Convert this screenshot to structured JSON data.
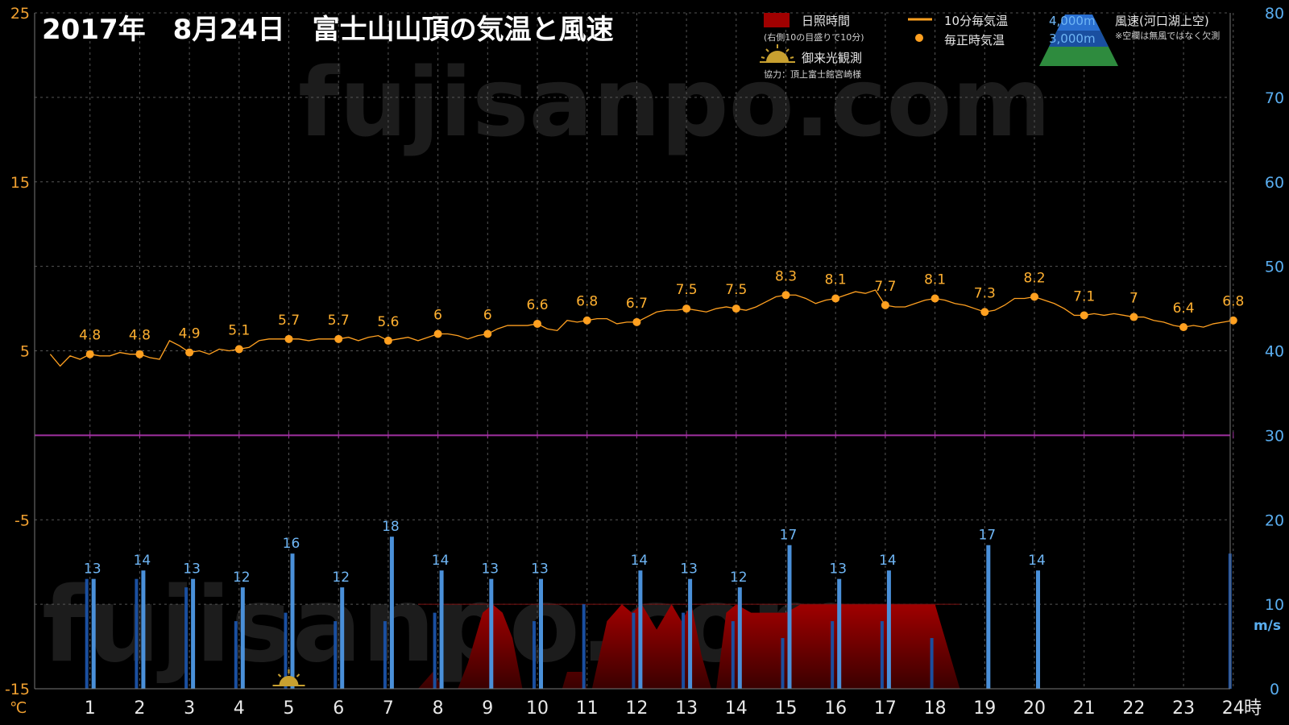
{
  "title": "2017年　8月24日　富士山山頂の気温と風速",
  "watermark": "fujisanpo.com",
  "colors": {
    "temperature": "#ffa020",
    "wind_4000": "#4a90d9",
    "wind_3000": "#1a4fa0",
    "sunshine": "#a00000",
    "zero_line": "#a030a0",
    "grid": "#555555",
    "left_axis": "#f0a030",
    "right_axis": "#5aaef0"
  },
  "legend": {
    "sunshine_label": "日照時間",
    "sunshine_note": "(右側10の目盛りで10分)",
    "temp10_label": "10分毎気温",
    "temp_hourly_label": "毎正時気温",
    "sunrise_label": "御来光観測",
    "credit": "協力：頂上富士館宮崎様",
    "alt_4000": "4,000m",
    "alt_3000": "3,000m",
    "wind_title": "風速(河口湖上空)",
    "wind_note": "※空欄は無風ではなく欠測"
  },
  "chart_data": {
    "type": "line",
    "x_unit_label": "時",
    "left_axis_unit": "℃",
    "right_axis_unit": "m/s",
    "hours": [
      1,
      2,
      3,
      4,
      5,
      6,
      7,
      8,
      9,
      10,
      11,
      12,
      13,
      14,
      15,
      16,
      17,
      18,
      19,
      20,
      21,
      22,
      23,
      24
    ],
    "left_ticks": [
      "-15",
      "-5",
      "5",
      "15",
      "25"
    ],
    "right_ticks": [
      "0",
      "10",
      "20",
      "30",
      "40",
      "50",
      "60",
      "70",
      "80"
    ],
    "temp_ylim": [
      -15,
      25
    ],
    "wind_ylim": [
      0,
      80
    ],
    "hourly_temperature": [
      4.8,
      4.8,
      4.9,
      5.1,
      5.7,
      5.7,
      5.6,
      6,
      6,
      6.6,
      6.8,
      6.7,
      7.5,
      7.5,
      8.3,
      8.1,
      7.7,
      8.1,
      7.3,
      8.2,
      7.1,
      7,
      6.4,
      6.8
    ],
    "hourly_temperature_labels": [
      "4.8",
      "4.8",
      "4.9",
      "5.1",
      "5.7",
      "5.7",
      "5.6",
      "6",
      "6",
      "6.6",
      "6.8",
      "6.7",
      "7.5",
      "7.5",
      "8.3",
      "8.1",
      "7.7",
      "8.1",
      "7.3",
      "8.2",
      "7.1",
      "7",
      "6.4",
      "6.8"
    ],
    "ten_min_temperature": [
      {
        "x": 0.2,
        "y": 4.8
      },
      {
        "x": 0.4,
        "y": 4.1
      },
      {
        "x": 0.6,
        "y": 4.7
      },
      {
        "x": 0.8,
        "y": 4.5
      },
      {
        "x": 1.0,
        "y": 4.8
      },
      {
        "x": 1.2,
        "y": 4.7
      },
      {
        "x": 1.4,
        "y": 4.7
      },
      {
        "x": 1.6,
        "y": 4.9
      },
      {
        "x": 1.8,
        "y": 4.8
      },
      {
        "x": 2.0,
        "y": 4.8
      },
      {
        "x": 2.2,
        "y": 4.6
      },
      {
        "x": 2.4,
        "y": 4.5
      },
      {
        "x": 2.6,
        "y": 5.6
      },
      {
        "x": 2.8,
        "y": 5.3
      },
      {
        "x": 3.0,
        "y": 4.9
      },
      {
        "x": 3.2,
        "y": 5.0
      },
      {
        "x": 3.4,
        "y": 4.8
      },
      {
        "x": 3.6,
        "y": 5.1
      },
      {
        "x": 3.8,
        "y": 5.0
      },
      {
        "x": 4.0,
        "y": 5.1
      },
      {
        "x": 4.2,
        "y": 5.2
      },
      {
        "x": 4.4,
        "y": 5.6
      },
      {
        "x": 4.6,
        "y": 5.7
      },
      {
        "x": 4.8,
        "y": 5.7
      },
      {
        "x": 5.0,
        "y": 5.7
      },
      {
        "x": 5.2,
        "y": 5.7
      },
      {
        "x": 5.4,
        "y": 5.6
      },
      {
        "x": 5.6,
        "y": 5.7
      },
      {
        "x": 5.8,
        "y": 5.7
      },
      {
        "x": 6.0,
        "y": 5.7
      },
      {
        "x": 6.2,
        "y": 5.8
      },
      {
        "x": 6.4,
        "y": 5.6
      },
      {
        "x": 6.6,
        "y": 5.8
      },
      {
        "x": 6.8,
        "y": 5.9
      },
      {
        "x": 7.0,
        "y": 5.6
      },
      {
        "x": 7.2,
        "y": 5.7
      },
      {
        "x": 7.4,
        "y": 5.8
      },
      {
        "x": 7.6,
        "y": 5.6
      },
      {
        "x": 7.8,
        "y": 5.8
      },
      {
        "x": 8.0,
        "y": 6.0
      },
      {
        "x": 8.2,
        "y": 6.0
      },
      {
        "x": 8.4,
        "y": 5.9
      },
      {
        "x": 8.6,
        "y": 5.7
      },
      {
        "x": 8.8,
        "y": 5.9
      },
      {
        "x": 9.0,
        "y": 6.0
      },
      {
        "x": 9.2,
        "y": 6.3
      },
      {
        "x": 9.4,
        "y": 6.5
      },
      {
        "x": 9.6,
        "y": 6.5
      },
      {
        "x": 9.8,
        "y": 6.5
      },
      {
        "x": 10.0,
        "y": 6.6
      },
      {
        "x": 10.2,
        "y": 6.3
      },
      {
        "x": 10.4,
        "y": 6.2
      },
      {
        "x": 10.6,
        "y": 6.8
      },
      {
        "x": 10.8,
        "y": 6.7
      },
      {
        "x": 11.0,
        "y": 6.8
      },
      {
        "x": 11.2,
        "y": 6.9
      },
      {
        "x": 11.4,
        "y": 6.9
      },
      {
        "x": 11.6,
        "y": 6.6
      },
      {
        "x": 11.8,
        "y": 6.7
      },
      {
        "x": 12.0,
        "y": 6.7
      },
      {
        "x": 12.2,
        "y": 7.0
      },
      {
        "x": 12.4,
        "y": 7.3
      },
      {
        "x": 12.6,
        "y": 7.4
      },
      {
        "x": 12.8,
        "y": 7.4
      },
      {
        "x": 13.0,
        "y": 7.5
      },
      {
        "x": 13.2,
        "y": 7.4
      },
      {
        "x": 13.4,
        "y": 7.3
      },
      {
        "x": 13.6,
        "y": 7.5
      },
      {
        "x": 13.8,
        "y": 7.6
      },
      {
        "x": 14.0,
        "y": 7.5
      },
      {
        "x": 14.2,
        "y": 7.4
      },
      {
        "x": 14.4,
        "y": 7.6
      },
      {
        "x": 14.6,
        "y": 7.9
      },
      {
        "x": 14.8,
        "y": 8.2
      },
      {
        "x": 15.0,
        "y": 8.3
      },
      {
        "x": 15.2,
        "y": 8.3
      },
      {
        "x": 15.4,
        "y": 8.1
      },
      {
        "x": 15.6,
        "y": 7.8
      },
      {
        "x": 15.8,
        "y": 8.0
      },
      {
        "x": 16.0,
        "y": 8.1
      },
      {
        "x": 16.2,
        "y": 8.3
      },
      {
        "x": 16.4,
        "y": 8.5
      },
      {
        "x": 16.6,
        "y": 8.4
      },
      {
        "x": 16.8,
        "y": 8.6
      },
      {
        "x": 17.0,
        "y": 7.7
      },
      {
        "x": 17.2,
        "y": 7.6
      },
      {
        "x": 17.4,
        "y": 7.6
      },
      {
        "x": 17.6,
        "y": 7.8
      },
      {
        "x": 17.8,
        "y": 8.0
      },
      {
        "x": 18.0,
        "y": 8.1
      },
      {
        "x": 18.2,
        "y": 8.0
      },
      {
        "x": 18.4,
        "y": 7.8
      },
      {
        "x": 18.6,
        "y": 7.7
      },
      {
        "x": 18.8,
        "y": 7.5
      },
      {
        "x": 19.0,
        "y": 7.3
      },
      {
        "x": 19.2,
        "y": 7.4
      },
      {
        "x": 19.4,
        "y": 7.7
      },
      {
        "x": 19.6,
        "y": 8.1
      },
      {
        "x": 19.8,
        "y": 8.1
      },
      {
        "x": 20.0,
        "y": 8.2
      },
      {
        "x": 20.2,
        "y": 8.0
      },
      {
        "x": 20.4,
        "y": 7.8
      },
      {
        "x": 20.6,
        "y": 7.5
      },
      {
        "x": 20.8,
        "y": 7.1
      },
      {
        "x": 21.0,
        "y": 7.1
      },
      {
        "x": 21.2,
        "y": 7.2
      },
      {
        "x": 21.4,
        "y": 7.1
      },
      {
        "x": 21.6,
        "y": 7.2
      },
      {
        "x": 21.8,
        "y": 7.1
      },
      {
        "x": 22.0,
        "y": 7.0
      },
      {
        "x": 22.2,
        "y": 7.0
      },
      {
        "x": 22.4,
        "y": 6.8
      },
      {
        "x": 22.6,
        "y": 6.7
      },
      {
        "x": 22.8,
        "y": 6.5
      },
      {
        "x": 23.0,
        "y": 6.4
      },
      {
        "x": 23.2,
        "y": 6.5
      },
      {
        "x": 23.4,
        "y": 6.4
      },
      {
        "x": 23.6,
        "y": 6.6
      },
      {
        "x": 23.8,
        "y": 6.7
      },
      {
        "x": 24.0,
        "y": 6.8
      }
    ],
    "wind_4000m": [
      13,
      14,
      13,
      12,
      16,
      12,
      18,
      14,
      13,
      13,
      null,
      14,
      13,
      12,
      17,
      13,
      14,
      null,
      17,
      14,
      null,
      null,
      null,
      null
    ],
    "wind_4000m_labels": [
      "13",
      "14",
      "13",
      "12",
      "16",
      "12",
      "18",
      "14",
      "13",
      "13",
      "",
      "14",
      "13",
      "12",
      "17",
      "13",
      "14",
      "",
      "17",
      "14",
      "",
      "",
      "",
      ""
    ],
    "wind_3000m": [
      13,
      13,
      12,
      8,
      9,
      8,
      8,
      9,
      null,
      8,
      10,
      9,
      9,
      8,
      6,
      8,
      8,
      6,
      null,
      null,
      null,
      null,
      null,
      16
    ],
    "sunshine_minutes": [
      {
        "x": 7.6,
        "y": 0
      },
      {
        "x": 7.9,
        "y": 2
      },
      {
        "x": 8.1,
        "y": 0
      },
      {
        "x": 8.4,
        "y": 0
      },
      {
        "x": 8.6,
        "y": 3
      },
      {
        "x": 8.9,
        "y": 9
      },
      {
        "x": 9.1,
        "y": 10
      },
      {
        "x": 9.3,
        "y": 9
      },
      {
        "x": 9.5,
        "y": 6
      },
      {
        "x": 9.7,
        "y": 0
      },
      {
        "x": 10.5,
        "y": 0
      },
      {
        "x": 10.6,
        "y": 2
      },
      {
        "x": 10.9,
        "y": 2
      },
      {
        "x": 11.0,
        "y": 0
      },
      {
        "x": 11.1,
        "y": 0
      },
      {
        "x": 11.4,
        "y": 8
      },
      {
        "x": 11.7,
        "y": 10
      },
      {
        "x": 11.9,
        "y": 9
      },
      {
        "x": 12.1,
        "y": 10
      },
      {
        "x": 12.4,
        "y": 7
      },
      {
        "x": 12.7,
        "y": 10
      },
      {
        "x": 12.9,
        "y": 8
      },
      {
        "x": 13.1,
        "y": 10
      },
      {
        "x": 13.3,
        "y": 4
      },
      {
        "x": 13.5,
        "y": 0
      },
      {
        "x": 13.6,
        "y": 0
      },
      {
        "x": 13.8,
        "y": 9
      },
      {
        "x": 14.0,
        "y": 10
      },
      {
        "x": 14.3,
        "y": 9
      },
      {
        "x": 15.0,
        "y": 9
      },
      {
        "x": 15.3,
        "y": 10
      },
      {
        "x": 18.0,
        "y": 10
      },
      {
        "x": 18.5,
        "y": 0
      }
    ],
    "sunrise_hour": 5
  }
}
